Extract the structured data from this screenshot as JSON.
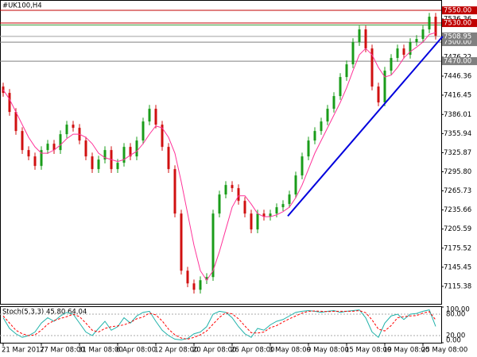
{
  "chart_data": {
    "type": "candlestick",
    "symbol": "#UK100,H4",
    "categories": [
      "21 Mar 2017",
      null,
      null,
      null,
      null,
      null,
      "27 Mar 08:00",
      null,
      null,
      null,
      null,
      null,
      "31 Mar 08:00",
      null,
      null,
      null,
      null,
      null,
      "6 Apr 08:00",
      null,
      null,
      null,
      null,
      null,
      "12 Apr 08:00",
      null,
      null,
      null,
      null,
      null,
      "20 Apr 08:00",
      null,
      null,
      null,
      null,
      null,
      "26 Apr 08:00",
      null,
      null,
      null,
      null,
      null,
      "3 May 08:00",
      null,
      null,
      null,
      null,
      null,
      "9 May 08:00",
      null,
      null,
      null,
      null,
      null,
      "15 May 08:00",
      null,
      null,
      null,
      null,
      null,
      "19 May 08:00",
      null,
      null,
      null,
      null,
      null,
      "25 May 08:00",
      null,
      null
    ],
    "open": [
      7430,
      7420,
      7390,
      7360,
      7330,
      7320,
      7305,
      7330,
      7340,
      7330,
      7355,
      7370,
      7365,
      7345,
      7320,
      7300,
      7315,
      7330,
      7300,
      7310,
      7335,
      7320,
      7345,
      7375,
      7395,
      7370,
      7335,
      7300,
      7230,
      7140,
      7120,
      7110,
      7125,
      7130,
      7230,
      7260,
      7275,
      7270,
      7250,
      7230,
      7205,
      7230,
      7225,
      7230,
      7240,
      7245,
      7260,
      7290,
      7320,
      7345,
      7360,
      7375,
      7395,
      7415,
      7445,
      7465,
      7500,
      7520,
      7490,
      7430,
      7405,
      7455,
      7475,
      7490,
      7480,
      7500,
      7505,
      7520,
      7540
    ],
    "high": [
      7436,
      7426,
      7396,
      7366,
      7336,
      7326,
      7336,
      7346,
      7346,
      7361,
      7376,
      7376,
      7371,
      7351,
      7326,
      7321,
      7336,
      7336,
      7316,
      7341,
      7341,
      7351,
      7381,
      7401,
      7401,
      7376,
      7341,
      7306,
      7236,
      7146,
      7126,
      7131,
      7136,
      7236,
      7266,
      7281,
      7281,
      7276,
      7256,
      7236,
      7236,
      7236,
      7236,
      7246,
      7251,
      7266,
      7296,
      7326,
      7351,
      7366,
      7381,
      7401,
      7421,
      7451,
      7471,
      7506,
      7526,
      7526,
      7496,
      7436,
      7461,
      7481,
      7496,
      7496,
      7506,
      7511,
      7526,
      7546,
      7546
    ],
    "low": [
      7414,
      7384,
      7354,
      7324,
      7314,
      7299,
      7299,
      7324,
      7324,
      7324,
      7349,
      7359,
      7339,
      7314,
      7294,
      7294,
      7309,
      7294,
      7294,
      7304,
      7314,
      7314,
      7339,
      7369,
      7364,
      7329,
      7294,
      7224,
      7134,
      7114,
      7104,
      7104,
      7119,
      7124,
      7224,
      7254,
      7264,
      7244,
      7224,
      7199,
      7199,
      7219,
      7219,
      7224,
      7234,
      7239,
      7254,
      7284,
      7314,
      7339,
      7354,
      7369,
      7389,
      7409,
      7439,
      7459,
      7494,
      7484,
      7424,
      7399,
      7399,
      7449,
      7469,
      7474,
      7474,
      7494,
      7499,
      7514,
      7504
    ],
    "close": [
      7420,
      7390,
      7360,
      7330,
      7320,
      7305,
      7330,
      7340,
      7330,
      7355,
      7370,
      7365,
      7345,
      7320,
      7300,
      7315,
      7330,
      7300,
      7310,
      7335,
      7320,
      7345,
      7375,
      7395,
      7370,
      7335,
      7300,
      7230,
      7140,
      7120,
      7110,
      7125,
      7130,
      7230,
      7260,
      7275,
      7270,
      7250,
      7230,
      7205,
      7230,
      7225,
      7230,
      7240,
      7245,
      7260,
      7290,
      7320,
      7345,
      7360,
      7375,
      7395,
      7415,
      7445,
      7465,
      7500,
      7520,
      7490,
      7430,
      7405,
      7455,
      7475,
      7490,
      7480,
      7500,
      7505,
      7520,
      7540,
      7510
    ],
    "up_color": "#1a9c1a",
    "down_color": "#d01010",
    "ma": {
      "color": "#ff3399",
      "values": [
        7425,
        7410,
        7390,
        7370,
        7350,
        7335,
        7325,
        7325,
        7330,
        7338,
        7348,
        7355,
        7355,
        7350,
        7340,
        7325,
        7318,
        7315,
        7312,
        7315,
        7322,
        7328,
        7340,
        7355,
        7368,
        7365,
        7350,
        7325,
        7280,
        7230,
        7180,
        7140,
        7125,
        7140,
        7170,
        7205,
        7240,
        7258,
        7258,
        7245,
        7230,
        7225,
        7225,
        7228,
        7233,
        7240,
        7255,
        7275,
        7300,
        7325,
        7345,
        7365,
        7385,
        7405,
        7428,
        7455,
        7480,
        7490,
        7480,
        7460,
        7445,
        7448,
        7460,
        7475,
        7485,
        7492,
        7500,
        7512,
        7515
      ]
    },
    "ylim": [
      7087.8,
      7566.3
    ],
    "yticks": [
      7536.36,
      7476.22,
      7446.36,
      7416.45,
      7386.01,
      7355.94,
      7325.87,
      {
        "value": 7295.8,
        "label": "7295.80"
      },
      7265.73,
      7235.66,
      7205.59,
      7175.52,
      7145.45,
      7115.38
    ],
    "levels": [
      {
        "value": 7550,
        "label": "7550.00",
        "color": "#c00000"
      },
      {
        "value": 7530,
        "label": "7530.00",
        "color": "#c00000"
      },
      {
        "value": 7527,
        "color": "#3a9a3a"
      },
      {
        "value": 7508.95,
        "color": "#a0a0a0"
      },
      {
        "value": 7500,
        "label": "7500.00",
        "color": "#808080"
      },
      {
        "value": 7470,
        "label": "7470.00",
        "color": "#808080"
      }
    ],
    "bid_label": 7508.95,
    "trendline": {
      "color": "#0000dd",
      "start": [
        44.75,
        7226
      ],
      "end": [
        69.1,
        7509
      ]
    },
    "stoch": {
      "title": "Stoch(5,3,3) 45.80 64.04",
      "ylim": [
        0,
        100
      ],
      "yticks": [
        {
          "value": 100,
          "label": "100.00"
        },
        {
          "value": 80,
          "label": "80.00"
        },
        {
          "value": 20,
          "label": "20.00"
        },
        {
          "value": 0,
          "label": "0.00"
        }
      ],
      "main": {
        "color": "#20b2aa",
        "values": [
          70,
          40,
          25,
          15,
          20,
          30,
          55,
          70,
          60,
          75,
          85,
          80,
          55,
          30,
          20,
          40,
          60,
          35,
          45,
          70,
          55,
          75,
          85,
          88,
          60,
          35,
          20,
          10,
          8,
          12,
          25,
          30,
          45,
          80,
          88,
          85,
          70,
          45,
          25,
          15,
          40,
          35,
          50,
          60,
          65,
          75,
          85,
          88,
          90,
          88,
          85,
          88,
          90,
          85,
          88,
          90,
          92,
          70,
          30,
          15,
          55,
          75,
          80,
          65,
          80,
          82,
          88,
          92,
          45.8
        ]
      },
      "signal": {
        "color": "#ff0000",
        "values": [
          75,
          55,
          35,
          25,
          20,
          22,
          35,
          52,
          62,
          68,
          73,
          80,
          73,
          55,
          35,
          30,
          40,
          45,
          47,
          50,
          57,
          67,
          72,
          83,
          78,
          61,
          38,
          22,
          13,
          10,
          15,
          22,
          33,
          52,
          71,
          84,
          81,
          67,
          47,
          28,
          27,
          30,
          42,
          48,
          58,
          67,
          75,
          83,
          88,
          89,
          88,
          87,
          88,
          88,
          88,
          88,
          90,
          84,
          64,
          38,
          33,
          48,
          70,
          73,
          75,
          76,
          83,
          87,
          64.04
        ]
      }
    }
  }
}
